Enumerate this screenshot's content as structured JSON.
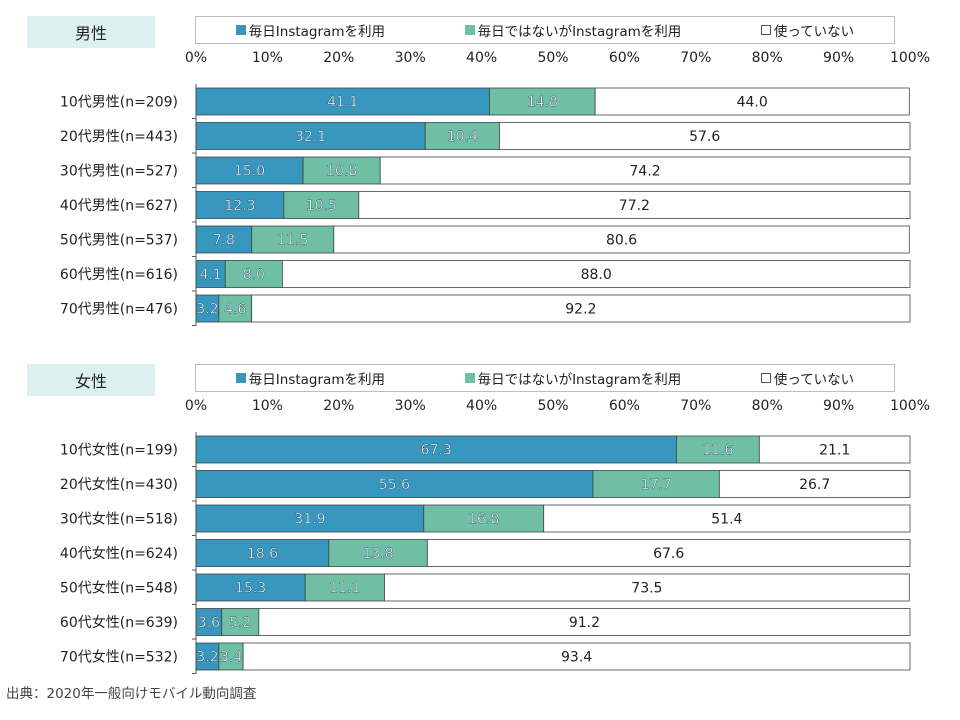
{
  "colors": {
    "daily": "#3797be",
    "not_daily": "#6fbfa4",
    "none": "#ffffff"
  },
  "legend": [
    {
      "label": "毎日Instagramを利用",
      "color": "#3797be"
    },
    {
      "label": "毎日ではないがInstagramを利用",
      "color": "#6fbfa4"
    },
    {
      "label": "使っていない",
      "color": "#ffffff"
    }
  ],
  "chart_data": [
    {
      "type": "bar",
      "orientation": "horizontal",
      "stacked": true,
      "title": "男性",
      "xlim": [
        0,
        100
      ],
      "x_ticks": [
        "0%",
        "10%",
        "20%",
        "30%",
        "40%",
        "50%",
        "60%",
        "70%",
        "80%",
        "90%",
        "100%"
      ],
      "categories": [
        "10代男性(n=209)",
        "20代男性(n=443)",
        "30代男性(n=527)",
        "40代男性(n=627)",
        "50代男性(n=537)",
        "60代男性(n=616)",
        "70代男性(n=476)"
      ],
      "series": [
        {
          "name": "毎日Instagramを利用",
          "values": [
            41.1,
            32.1,
            15.0,
            12.3,
            7.8,
            4.1,
            3.2
          ]
        },
        {
          "name": "毎日ではないがInstagramを利用",
          "values": [
            14.8,
            10.4,
            10.8,
            10.5,
            11.5,
            8.0,
            4.6
          ]
        },
        {
          "name": "使っていない",
          "values": [
            44.0,
            57.6,
            74.2,
            77.2,
            80.6,
            88.0,
            92.2
          ]
        }
      ]
    },
    {
      "type": "bar",
      "orientation": "horizontal",
      "stacked": true,
      "title": "女性",
      "xlim": [
        0,
        100
      ],
      "x_ticks": [
        "0%",
        "10%",
        "20%",
        "30%",
        "40%",
        "50%",
        "60%",
        "70%",
        "80%",
        "90%",
        "100%"
      ],
      "categories": [
        "10代女性(n=199)",
        "20代女性(n=430)",
        "30代女性(n=518)",
        "40代女性(n=624)",
        "50代女性(n=548)",
        "60代女性(n=639)",
        "70代女性(n=532)"
      ],
      "series": [
        {
          "name": "毎日Instagramを利用",
          "values": [
            67.3,
            55.6,
            31.9,
            18.6,
            15.3,
            3.6,
            3.2
          ]
        },
        {
          "name": "毎日ではないがInstagramを利用",
          "values": [
            11.6,
            17.7,
            16.8,
            13.8,
            11.1,
            5.2,
            3.4
          ]
        },
        {
          "name": "使っていない",
          "values": [
            21.1,
            26.7,
            51.4,
            67.6,
            73.5,
            91.2,
            93.4
          ]
        }
      ]
    }
  ],
  "source": "出典：2020年一般向けモバイル動向調査"
}
